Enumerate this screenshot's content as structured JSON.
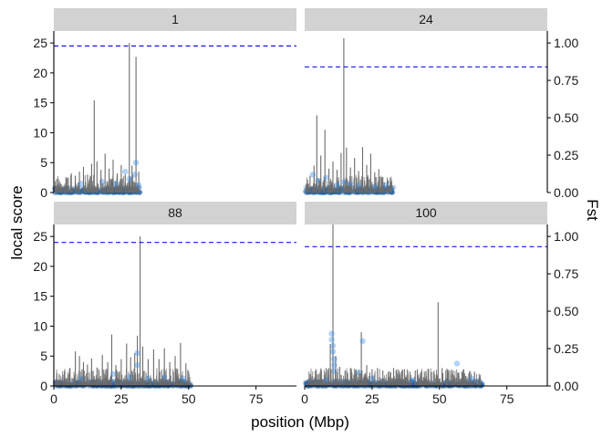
{
  "chart_data": {
    "type": "line",
    "title": "",
    "xlabel": "position (Mbp)",
    "ylabel": "local score",
    "y2label": "Fst",
    "xlim": [
      0,
      90
    ],
    "x_ticks": [
      0,
      25,
      50,
      75
    ],
    "x_tick_labels": [
      "0",
      "25",
      "50",
      "75"
    ],
    "ylim": [
      0,
      27
    ],
    "y_ticks": [
      0,
      5,
      10,
      15,
      20,
      25
    ],
    "y_tick_labels": [
      "0",
      "5",
      "10",
      "15",
      "20",
      "25"
    ],
    "y2lim": [
      0,
      1.08
    ],
    "y2_ticks": [
      0,
      0.25,
      0.5,
      0.75,
      1.0
    ],
    "y2_tick_labels": [
      "0.00",
      "0.25",
      "0.50",
      "0.75",
      "1.00"
    ],
    "grid": false,
    "colors": {
      "local_score_line": "#6b6b6b",
      "fst_points": "#3d8fe6",
      "fst_dense": "#1f5f9e",
      "threshold": "#1414e6",
      "strip_bg": "#d2d2d2"
    },
    "panels": [
      {
        "label": "1",
        "chrom_end": 32,
        "threshold": 24.5,
        "spikes": [
          [
            5,
            2.5
          ],
          [
            6.5,
            3.2
          ],
          [
            8,
            2.8
          ],
          [
            9.5,
            3.5
          ],
          [
            11,
            4.3
          ],
          [
            12.5,
            3.0
          ],
          [
            14,
            4.8
          ],
          [
            15,
            15.4
          ],
          [
            16,
            5.2
          ],
          [
            17.5,
            3.8
          ],
          [
            19,
            6.5
          ],
          [
            20.5,
            4.0
          ],
          [
            22,
            5.5
          ],
          [
            23.5,
            3.2
          ],
          [
            25,
            4.6
          ],
          [
            26.5,
            3.0
          ],
          [
            28,
            25.0
          ],
          [
            29,
            4.5
          ],
          [
            30.5,
            22.7
          ],
          [
            31.5,
            3.5
          ]
        ],
        "fst_points": [
          [
            10,
            0.06
          ],
          [
            18,
            0.07
          ],
          [
            23,
            0.06
          ],
          [
            26.5,
            0.14
          ],
          [
            28,
            0.09
          ],
          [
            30,
            0.12
          ],
          [
            30.5,
            0.2
          ],
          [
            31.5,
            0.05
          ]
        ]
      },
      {
        "label": "24",
        "chrom_end": 33,
        "threshold": 21.0,
        "spikes": [
          [
            2,
            2.8
          ],
          [
            3.5,
            4.5
          ],
          [
            4.5,
            12.9
          ],
          [
            6,
            6.2
          ],
          [
            7.5,
            10.5
          ],
          [
            9,
            4.0
          ],
          [
            10.5,
            5.2
          ],
          [
            12,
            3.8
          ],
          [
            13.5,
            6.6
          ],
          [
            14.5,
            25.8
          ],
          [
            15.5,
            7.5
          ],
          [
            17,
            4.2
          ],
          [
            18.5,
            5.8
          ],
          [
            20,
            3.6
          ],
          [
            21.5,
            7.6
          ],
          [
            23,
            4.6
          ],
          [
            24.5,
            6.5
          ],
          [
            26,
            3.4
          ],
          [
            27.5,
            3.9
          ],
          [
            29,
            2.6
          ],
          [
            31,
            2.0
          ]
        ],
        "fst_points": [
          [
            3,
            0.12
          ],
          [
            5,
            0.08
          ],
          [
            8,
            0.1
          ],
          [
            12,
            0.05
          ],
          [
            14.5,
            0.07
          ],
          [
            17,
            0.06
          ],
          [
            20,
            0.05
          ],
          [
            26,
            0.04
          ],
          [
            30,
            0.05
          ]
        ]
      },
      {
        "label": "88",
        "chrom_end": 51,
        "threshold": 24.0,
        "spikes": [
          [
            2,
            2.0
          ],
          [
            4,
            2.5
          ],
          [
            6,
            3.0
          ],
          [
            8,
            5.8
          ],
          [
            9.5,
            5.0
          ],
          [
            11,
            4.0
          ],
          [
            12.5,
            3.6
          ],
          [
            14,
            4.6
          ],
          [
            16,
            3.1
          ],
          [
            18,
            5.2
          ],
          [
            20,
            4.0
          ],
          [
            21.5,
            8.6
          ],
          [
            23,
            3.5
          ],
          [
            25,
            4.5
          ],
          [
            27,
            7.1
          ],
          [
            28.5,
            4.8
          ],
          [
            30,
            5.5
          ],
          [
            31,
            8.4
          ],
          [
            32,
            25.0
          ],
          [
            33,
            6.6
          ],
          [
            35,
            4.5
          ],
          [
            37,
            6.1
          ],
          [
            39,
            4.5
          ],
          [
            41,
            6.3
          ],
          [
            43,
            4.0
          ],
          [
            45,
            5.0
          ],
          [
            47,
            7.2
          ],
          [
            49,
            3.8
          ],
          [
            50,
            2.5
          ]
        ],
        "fst_points": [
          [
            10,
            0.05
          ],
          [
            22,
            0.08
          ],
          [
            28,
            0.06
          ],
          [
            31,
            0.22
          ],
          [
            31,
            0.14
          ],
          [
            35,
            0.05
          ],
          [
            41,
            0.06
          ],
          [
            48,
            0.05
          ]
        ]
      },
      {
        "label": "100",
        "chrom_end": 66,
        "threshold": 23.3,
        "spikes": [
          [
            2,
            2.0
          ],
          [
            4,
            2.5
          ],
          [
            6,
            2.8
          ],
          [
            8,
            3.0
          ],
          [
            9.5,
            7.0
          ],
          [
            10.5,
            27.0
          ],
          [
            11.5,
            5.0
          ],
          [
            13,
            3.2
          ],
          [
            15,
            2.6
          ],
          [
            17,
            3.0
          ],
          [
            19,
            2.8
          ],
          [
            21,
            9.0
          ],
          [
            23,
            3.5
          ],
          [
            25,
            2.8
          ],
          [
            27,
            3.0
          ],
          [
            29,
            2.6
          ],
          [
            31,
            2.4
          ],
          [
            33,
            3.0
          ],
          [
            35,
            2.5
          ],
          [
            37,
            2.8
          ],
          [
            39,
            2.4
          ],
          [
            41,
            2.6
          ],
          [
            43,
            2.2
          ],
          [
            45,
            2.5
          ],
          [
            47,
            2.3
          ],
          [
            49.5,
            14.0
          ],
          [
            51,
            3.0
          ],
          [
            53,
            2.4
          ],
          [
            55,
            2.6
          ],
          [
            57,
            2.2
          ],
          [
            59,
            2.8
          ],
          [
            61,
            2.2
          ],
          [
            63,
            2.4
          ]
        ],
        "fst_points": [
          [
            8,
            0.04
          ],
          [
            10,
            0.35
          ],
          [
            10,
            0.31
          ],
          [
            10.5,
            0.27
          ],
          [
            10.5,
            0.23
          ],
          [
            11,
            0.18
          ],
          [
            11,
            0.14
          ],
          [
            11,
            0.1
          ],
          [
            20,
            0.09
          ],
          [
            21.5,
            0.3
          ],
          [
            25,
            0.05
          ],
          [
            40,
            0.04
          ],
          [
            56.5,
            0.15
          ],
          [
            62,
            0.05
          ]
        ]
      }
    ]
  }
}
